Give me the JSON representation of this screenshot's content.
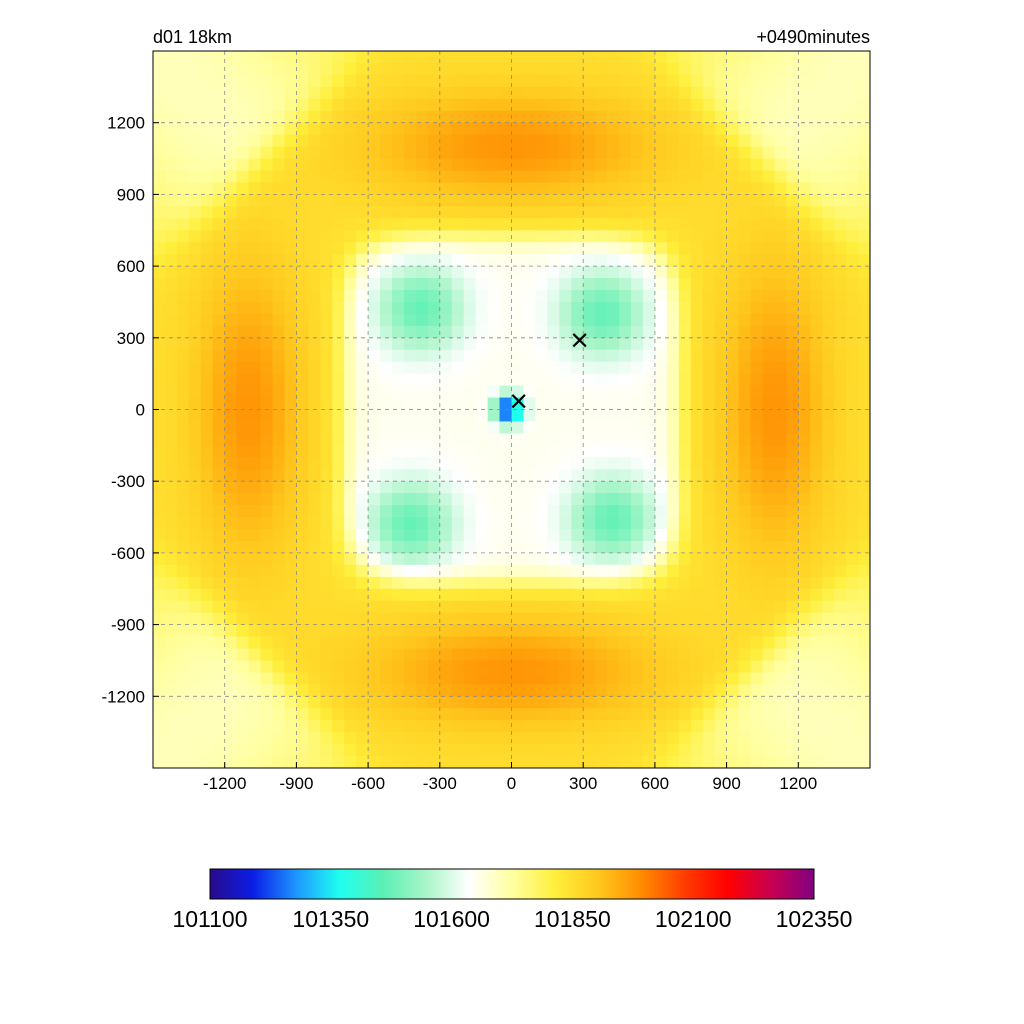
{
  "chart_data": {
    "type": "heatmap",
    "title_left": "d01 18km",
    "title_right": "+0490minutes",
    "xlabel": "",
    "ylabel": "",
    "xlim": [
      -1500,
      1500
    ],
    "ylim": [
      -1500,
      1500
    ],
    "xticks": [
      -1200,
      -900,
      -600,
      -300,
      0,
      300,
      600,
      900,
      1200
    ],
    "yticks": [
      1200,
      900,
      600,
      300,
      0,
      -300,
      -600,
      -900,
      -1200
    ],
    "grid": true,
    "colorbar": {
      "orientation": "horizontal",
      "placement": "bottom",
      "min": 101100,
      "max": 102350,
      "ticks": [
        101100,
        101350,
        101600,
        101850,
        102100,
        102350
      ],
      "colors": [
        "#2a0a8c",
        "#0a1ee6",
        "#1e96ff",
        "#1effef",
        "#5af0b4",
        "#a8f5c8",
        "#ffffff",
        "#ffffa0",
        "#ffef3c",
        "#ffc81e",
        "#ff8c00",
        "#ff3c00",
        "#ff0000",
        "#c80050",
        "#820082"
      ]
    },
    "field": {
      "background_value": 101850,
      "high_value": 101980,
      "inner_value": 101650,
      "outer_corner_value": 101700,
      "lows": [
        {
          "x": -380,
          "y": 420,
          "value": 101450
        },
        {
          "x": 380,
          "y": 400,
          "value": 101450
        },
        {
          "x": -420,
          "y": -480,
          "value": 101450
        },
        {
          "x": 420,
          "y": -460,
          "value": 101450
        },
        {
          "x": -10,
          "y": 0,
          "value": 101150
        }
      ]
    },
    "markers": [
      {
        "x": 30,
        "y": 35,
        "symbol": "x"
      },
      {
        "x": 285,
        "y": 290,
        "symbol": "x"
      }
    ]
  }
}
